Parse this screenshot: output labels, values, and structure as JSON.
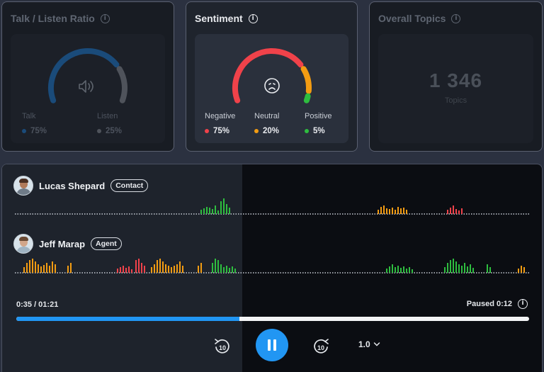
{
  "talk_listen": {
    "title": "Talk / Listen Ratio",
    "talk_label": "Talk",
    "talk_value": "75%",
    "talk_fraction": 0.75,
    "listen_label": "Listen",
    "listen_value": "25%",
    "talk_color": "#1a4b7a",
    "listen_color": "#4f535b",
    "icon": "speaker-icon"
  },
  "sentiment": {
    "title": "Sentiment",
    "face_icon": "sad-face-icon",
    "negative_label": "Negative",
    "negative_value": "75%",
    "neutral_label": "Neutral",
    "neutral_value": "20%",
    "positive_label": "Positive",
    "positive_value": "5%",
    "fractions": {
      "negative": 0.75,
      "neutral": 0.2,
      "positive": 0.05
    },
    "colors": {
      "negative": "#f0424a",
      "neutral": "#f39c12",
      "positive": "#2ebd3f"
    }
  },
  "topics": {
    "title": "Overall Topics",
    "count": "1 346",
    "label": "Topics"
  },
  "speakers": [
    {
      "name": "Lucas Shepard",
      "role": "Contact"
    },
    {
      "name": "Jeff Marap",
      "role": "Agent"
    }
  ],
  "player": {
    "time": "0:35 / 01:21",
    "paused": "Paused 0:12",
    "progress_fraction": 0.4355,
    "speed": "1.0",
    "rewind_label": "10",
    "forward_label": "10",
    "accent": "#2196f3"
  }
}
